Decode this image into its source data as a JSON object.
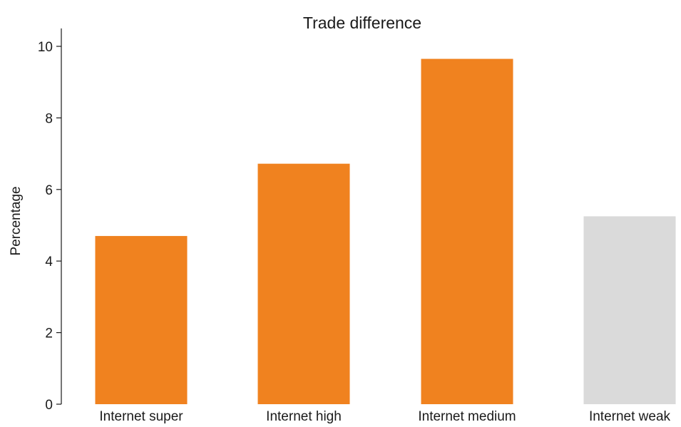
{
  "chart_data": {
    "type": "bar",
    "title": "Trade difference",
    "xlabel": "",
    "ylabel": "Percentage",
    "categories": [
      "Internet super",
      "Internet high",
      "Internet medium",
      "Internet weak"
    ],
    "values": [
      4.7,
      6.72,
      9.65,
      5.25
    ],
    "colors": [
      "#f0821f",
      "#f0821f",
      "#f0821f",
      "#dadada"
    ],
    "ylim": [
      0,
      10.5
    ],
    "yticks": [
      0,
      2,
      4,
      6,
      8,
      10
    ],
    "ytick_labels": [
      "0",
      "2",
      "4",
      "6",
      "8",
      "10"
    ],
    "grid": false,
    "legend": "none"
  }
}
